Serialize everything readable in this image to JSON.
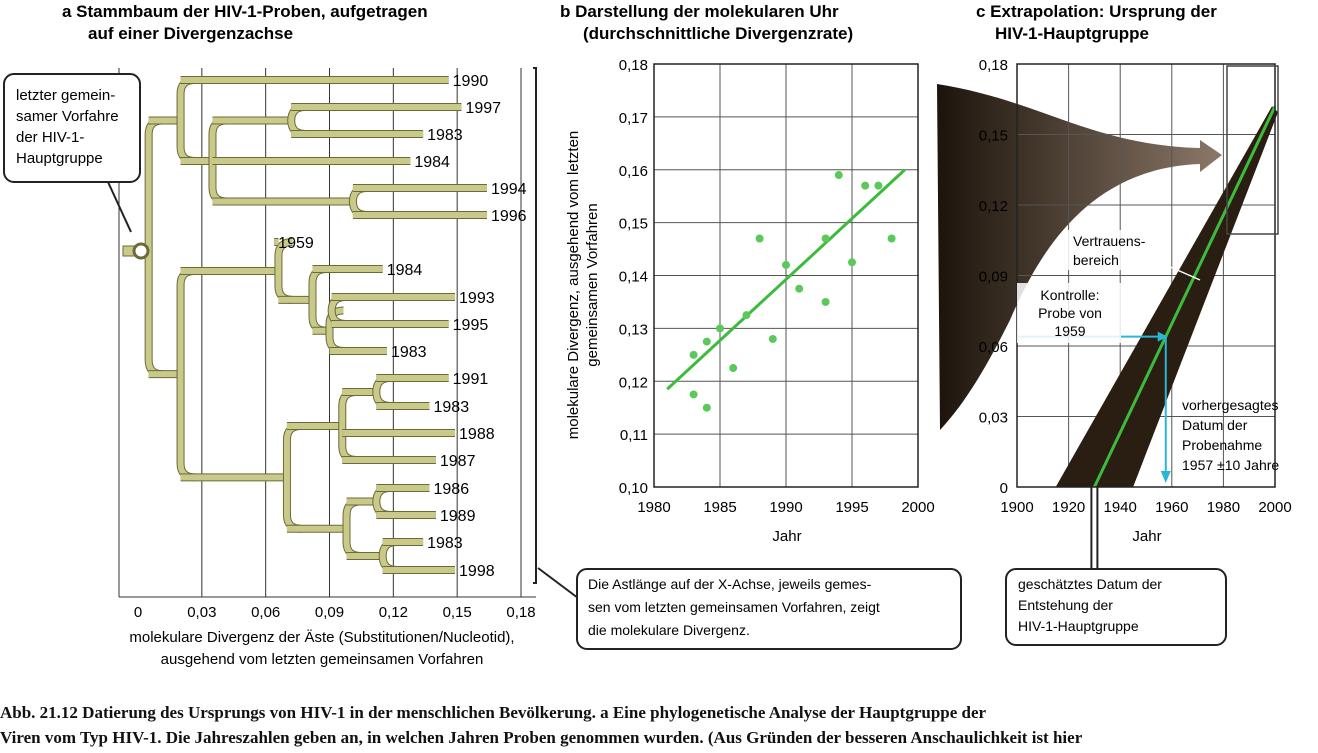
{
  "panel_a": {
    "title_line1": "a  Stammbaum der HIV-1-Proben, aufgetragen",
    "title_line2": "auf einer Divergenzachse",
    "callout_root": [
      "letzter gemein-",
      "samer Vorfahre",
      "der HIV-1-",
      "Hauptgruppe"
    ],
    "axis_label_line1": "molekulare Divergenz der Äste (Substitutionen/Nucleotid),",
    "axis_label_line2": "ausgehend vom letzten gemeinsamen Vorfahren",
    "callout_axis": [
      "Die Astlänge auf der X-Achse, jeweils gemes-",
      "sen vom letzten gemeinsamen Vorfahren, zeigt",
      "die molekulare Divergenz."
    ],
    "x_ticks": [
      "0",
      "0,03",
      "0,06",
      "0,09",
      "0,12",
      "0,15",
      "0,18"
    ],
    "leaf_years": [
      "1990",
      "1997",
      "1983",
      "1984",
      "1994",
      "1996",
      "1959",
      "1984",
      "1993",
      "1995",
      "1983",
      "1991",
      "1983",
      "1988",
      "1987",
      "1986",
      "1989",
      "1983",
      "1998"
    ],
    "colors": {
      "branch": "#c9c98a",
      "branch_edge": "#6b6b3a",
      "grid": "#333333"
    }
  },
  "panel_b": {
    "title_line1": "b  Darstellung der molekularen Uhr",
    "title_line2": "(durchschnittliche Divergenzrate)",
    "ylabel_line1": "molekulare Divergenz, ausgehend vom letzten",
    "ylabel_line2": "gemeinsamen Vorfahren",
    "xlabel": "Jahr",
    "x_ticks": [
      "1980",
      "1985",
      "1990",
      "1995",
      "2000"
    ],
    "y_ticks": [
      "0,10",
      "0,11",
      "0,12",
      "0,13",
      "0,14",
      "0,15",
      "0,16",
      "0,17",
      "0,18"
    ],
    "colors": {
      "points": "#5cc85c",
      "line": "#3dbb3d"
    }
  },
  "panel_c": {
    "title_line1": "c  Extrapolation: Ursprung der",
    "title_line2": "HIV-1-Hauptgruppe",
    "xlabel": "Jahr",
    "x_ticks": [
      "1900",
      "1920",
      "1940",
      "1960",
      "1980",
      "2000"
    ],
    "y_ticks": [
      "0",
      "0,03",
      "0,06",
      "0,09",
      "0,12",
      "0,15",
      "0,18"
    ],
    "label_confidence": [
      "Vertrauens-",
      "bereich"
    ],
    "label_control": [
      "Kontrolle:",
      "Probe von",
      "1959"
    ],
    "label_predicted": [
      "vorhergesagtes",
      "Datum der",
      "Probenahme",
      "1957 ±10 Jahre"
    ],
    "callout_origin": [
      "geschätztes Datum der",
      "Entstehung der",
      "HIV-1-Hauptgruppe"
    ],
    "colors": {
      "band": "#2a1d12",
      "line": "#3dbb3d",
      "arrow": "#29b6d9"
    }
  },
  "caption": {
    "line1": "Abb. 21.12  Datierung des Ursprungs von HIV-1 in der menschlichen Bevölkerung. a Eine phylogenetische Analyse der Hauptgruppe der",
    "line2": "Viren vom Typ HIV-1. Die Jahreszahlen geben an, in welchen Jahren Proben genommen wurden. (Aus Gründen der besseren Anschaulichkeit ist hier"
  },
  "chart_data": [
    {
      "type": "tree",
      "title": "a  Stammbaum der HIV-1-Proben, aufgetragen auf einer Divergenzachse",
      "xlabel": "molekulare Divergenz der Äste (Substitutionen/Nucleotid), ausgehend vom letzten gemeinsamen Vorfahren",
      "xlim": [
        0,
        0.18
      ],
      "x_ticks": [
        0,
        0.03,
        0.06,
        0.09,
        0.12,
        0.15,
        0.18
      ],
      "leaves": [
        {
          "year": "1990",
          "divergence": 0.146
        },
        {
          "year": "1997",
          "divergence": 0.152
        },
        {
          "year": "1983",
          "divergence": 0.134
        },
        {
          "year": "1984",
          "divergence": 0.128
        },
        {
          "year": "1994",
          "divergence": 0.164
        },
        {
          "year": "1996",
          "divergence": 0.164
        },
        {
          "year": "1959",
          "divergence": 0.064
        },
        {
          "year": "1984",
          "divergence": 0.115
        },
        {
          "year": "1993",
          "divergence": 0.149
        },
        {
          "year": "1995",
          "divergence": 0.146
        },
        {
          "year": "1983",
          "divergence": 0.117
        },
        {
          "year": "1991",
          "divergence": 0.146
        },
        {
          "year": "1983",
          "divergence": 0.137
        },
        {
          "year": "1988",
          "divergence": 0.149
        },
        {
          "year": "1987",
          "divergence": 0.14
        },
        {
          "year": "1986",
          "divergence": 0.137
        },
        {
          "year": "1989",
          "divergence": 0.14
        },
        {
          "year": "1983",
          "divergence": 0.134
        },
        {
          "year": "1998",
          "divergence": 0.149
        }
      ]
    },
    {
      "type": "scatter",
      "title": "b  Darstellung der molekularen Uhr (durchschnittliche Divergenzrate)",
      "xlabel": "Jahr",
      "ylabel": "molekulare Divergenz, ausgehend vom letzten gemeinsamen Vorfahren",
      "xlim": [
        1980,
        2000
      ],
      "ylim": [
        0.1,
        0.18
      ],
      "x": [
        1983,
        1983,
        1984,
        1984,
        1985,
        1986,
        1987,
        1988,
        1989,
        1990,
        1991,
        1993,
        1993,
        1994,
        1995,
        1996,
        1997,
        1998
      ],
      "y": [
        0.1175,
        0.125,
        0.115,
        0.1275,
        0.13,
        0.1225,
        0.1325,
        0.147,
        0.128,
        0.142,
        0.1375,
        0.135,
        0.147,
        0.159,
        0.1425,
        0.157,
        0.157,
        0.147
      ],
      "trend_line": {
        "x": [
          1981,
          1999
        ],
        "y": [
          0.1185,
          0.16
        ]
      }
    },
    {
      "type": "line",
      "title": "c  Extrapolation: Ursprung der HIV-1-Hauptgruppe",
      "xlabel": "Jahr",
      "xlim": [
        1900,
        2000
      ],
      "ylim": [
        0,
        0.18
      ],
      "regression": {
        "x": [
          1930,
          2000
        ],
        "y": [
          0,
          0.162
        ]
      },
      "confidence_band_at_zero": [
        1915,
        1945
      ],
      "control_divergence": 0.064,
      "predicted_sampling_year": 1957,
      "predicted_uncertainty_years": 10,
      "estimated_origin_year": 1930
    }
  ]
}
